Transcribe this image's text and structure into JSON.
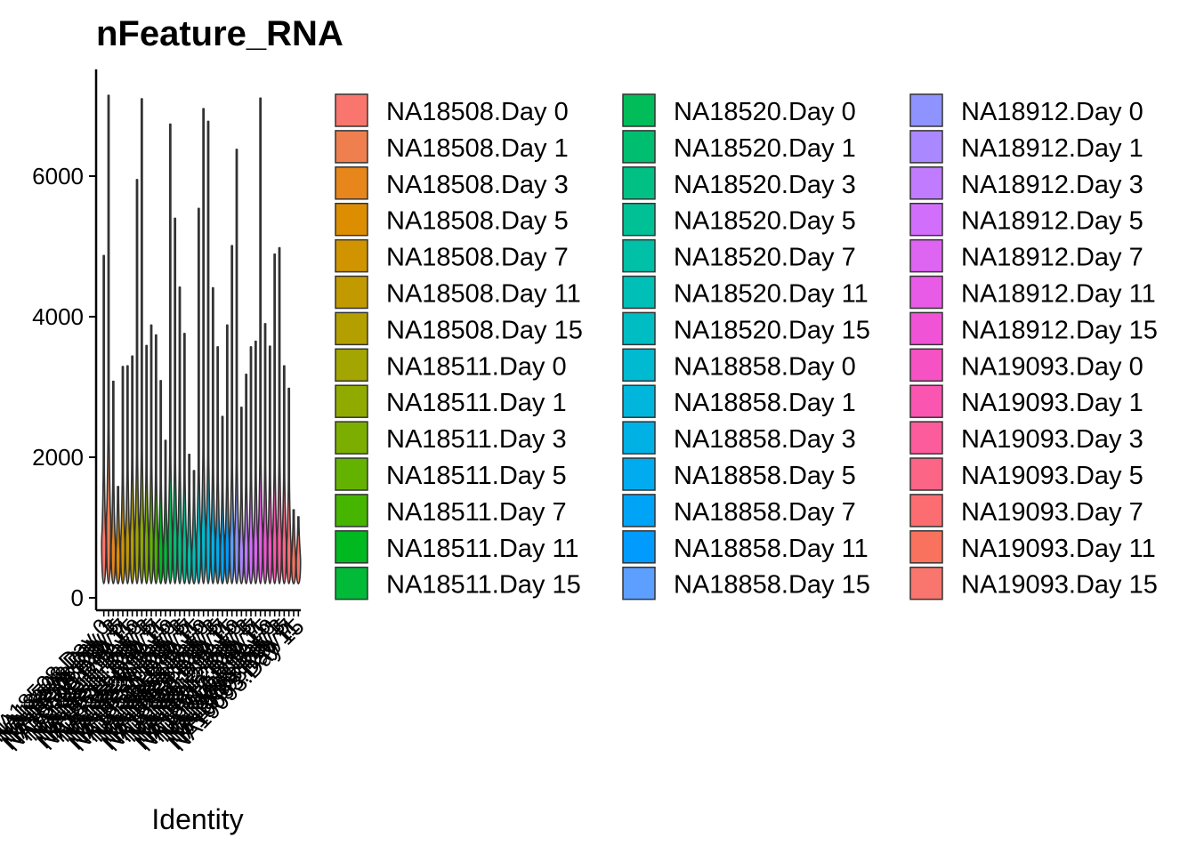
{
  "chart_data": {
    "type": "violin",
    "title": "nFeature_RNA",
    "xlabel": "Identity",
    "ylabel": "",
    "ylim": [
      0,
      7500
    ],
    "yticks": [
      0,
      2000,
      4000,
      6000
    ],
    "grid": false,
    "legend_position": "right",
    "categories": [
      "NA18508.Day 0",
      "NA18508.Day 1",
      "NA18508.Day 3",
      "NA18508.Day 5",
      "NA18508.Day 7",
      "NA18508.Day 11",
      "NA18508.Day 15",
      "NA18511.Day 0",
      "NA18511.Day 1",
      "NA18511.Day 3",
      "NA18511.Day 5",
      "NA18511.Day 7",
      "NA18511.Day 11",
      "NA18511.Day 15",
      "NA18520.Day 0",
      "NA18520.Day 1",
      "NA18520.Day 3",
      "NA18520.Day 5",
      "NA18520.Day 7",
      "NA18520.Day 11",
      "NA18520.Day 15",
      "NA18858.Day 0",
      "NA18858.Day 1",
      "NA18858.Day 3",
      "NA18858.Day 5",
      "NA18858.Day 7",
      "NA18858.Day 11",
      "NA18858.Day 15",
      "NA18912.Day 0",
      "NA18912.Day 1",
      "NA18912.Day 3",
      "NA18912.Day 5",
      "NA18912.Day 7",
      "NA18912.Day 11",
      "NA18912.Day 15",
      "NA19093.Day 0",
      "NA19093.Day 1",
      "NA19093.Day 3",
      "NA19093.Day 5",
      "NA19093.Day 7",
      "NA19093.Day 11",
      "NA19093.Day 15"
    ],
    "colors": [
      "#F8766D",
      "#F07F4F",
      "#E7861B",
      "#DC8E00",
      "#D09400",
      "#C29A00",
      "#B3A000",
      "#A3A500",
      "#91AA00",
      "#7CAE00",
      "#64B200",
      "#45B500",
      "#00B81F",
      "#00BA38",
      "#00BC59",
      "#00BE70",
      "#00C084",
      "#00C096",
      "#00C0A7",
      "#00BFB7",
      "#00BDC4",
      "#00BAD1",
      "#00B6DC",
      "#00B1E6",
      "#00ABEF",
      "#00A4F6",
      "#009BFC",
      "#5C9FFF",
      "#8E93FF",
      "#AA88FF",
      "#C07BFF",
      "#D16EFC",
      "#DE64F2",
      "#E85BE6",
      "#F053D6",
      "#F652C4",
      "#FA55B1",
      "#FC5C9B",
      "#FC6585",
      "#FB6D71",
      "#F9725D",
      "#F8766D"
    ],
    "series": [
      {
        "max": 4870,
        "peak": 900
      },
      {
        "max": 7150,
        "peak": 1200
      },
      {
        "max": 3080,
        "peak": 800
      },
      {
        "max": 1500,
        "peak": 700
      },
      {
        "max": 3290,
        "peak": 850
      },
      {
        "max": 3300,
        "peak": 900
      },
      {
        "max": 3440,
        "peak": 950
      },
      {
        "max": 5950,
        "peak": 1000
      },
      {
        "max": 7100,
        "peak": 1050
      },
      {
        "max": 3590,
        "peak": 900
      },
      {
        "max": 3880,
        "peak": 950
      },
      {
        "max": 3740,
        "peak": 850
      },
      {
        "max": 3090,
        "peak": 800
      },
      {
        "max": 2240,
        "peak": 750
      },
      {
        "max": 6740,
        "peak": 1000
      },
      {
        "max": 5400,
        "peak": 950
      },
      {
        "max": 4420,
        "peak": 900
      },
      {
        "max": 3760,
        "peak": 850
      },
      {
        "max": 2040,
        "peak": 700
      },
      {
        "max": 1810,
        "peak": 700
      },
      {
        "max": 5540,
        "peak": 900
      },
      {
        "max": 6960,
        "peak": 1050
      },
      {
        "max": 6780,
        "peak": 1000
      },
      {
        "max": 4410,
        "peak": 900
      },
      {
        "max": 3570,
        "peak": 850
      },
      {
        "max": 2580,
        "peak": 750
      },
      {
        "max": 3880,
        "peak": 850
      },
      {
        "max": 5010,
        "peak": 900
      },
      {
        "max": 6380,
        "peak": 950
      },
      {
        "max": 2710,
        "peak": 750
      },
      {
        "max": 3180,
        "peak": 800
      },
      {
        "max": 3570,
        "peak": 850
      },
      {
        "max": 3650,
        "peak": 850
      },
      {
        "max": 7110,
        "peak": 1000
      },
      {
        "max": 3900,
        "peak": 900
      },
      {
        "max": 3580,
        "peak": 850
      },
      {
        "max": 4890,
        "peak": 900
      },
      {
        "max": 4980,
        "peak": 950
      },
      {
        "max": 3300,
        "peak": 850
      },
      {
        "max": 2980,
        "peak": 800
      },
      {
        "max": 1000,
        "peak": 600
      },
      {
        "max": 900,
        "peak": 600
      }
    ],
    "min_value": 200
  }
}
